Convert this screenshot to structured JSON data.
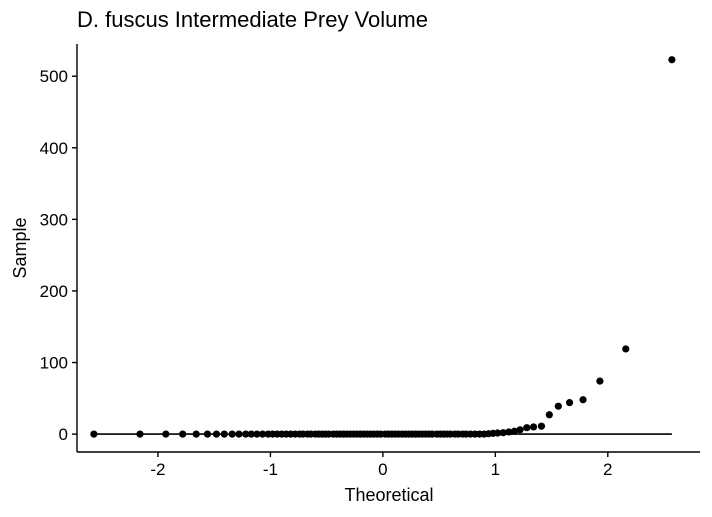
{
  "chart_data": {
    "type": "scatter",
    "subtype": "qq-plot",
    "title": "D. fuscus Intermediate Prey Volume",
    "xlabel": "Theoretical",
    "ylabel": "Sample",
    "xlim": [
      -2.72,
      2.82
    ],
    "ylim": [
      -25,
      545
    ],
    "x_ticks": [
      -2,
      -1,
      0,
      1,
      2
    ],
    "x_tick_labels": [
      "-2",
      "-1",
      "0",
      "1",
      "2"
    ],
    "y_ticks": [
      0,
      100,
      200,
      300,
      400,
      500
    ],
    "y_tick_labels": [
      "0",
      "100",
      "200",
      "300",
      "400",
      "500"
    ],
    "grid": false,
    "legend": "none",
    "reference_line": {
      "x": [
        -2.57,
        2.57
      ],
      "y": [
        0,
        0
      ]
    },
    "colors": {
      "points": "#000000",
      "axes": "#000000",
      "line": "#000000"
    },
    "points": {
      "x": [
        -2.57,
        -2.16,
        -1.93,
        -1.78,
        -1.66,
        -1.56,
        -1.48,
        -1.41,
        -1.34,
        -1.28,
        -1.22,
        -1.17,
        -1.12,
        -1.07,
        -1.02,
        -0.98,
        -0.94,
        -0.9,
        -0.86,
        -0.82,
        -0.78,
        -0.74,
        -0.71,
        -0.67,
        -0.64,
        -0.6,
        -0.57,
        -0.54,
        -0.51,
        -0.48,
        -0.44,
        -0.41,
        -0.38,
        -0.35,
        -0.32,
        -0.29,
        -0.26,
        -0.23,
        -0.2,
        -0.17,
        -0.14,
        -0.11,
        -0.08,
        -0.05,
        -0.02,
        0.02,
        0.05,
        0.08,
        0.11,
        0.14,
        0.17,
        0.2,
        0.23,
        0.26,
        0.29,
        0.32,
        0.35,
        0.38,
        0.41,
        0.44,
        0.48,
        0.51,
        0.54,
        0.57,
        0.6,
        0.64,
        0.67,
        0.71,
        0.74,
        0.78,
        0.82,
        0.86,
        0.9,
        0.94,
        0.98,
        1.02,
        1.07,
        1.12,
        1.17,
        1.22,
        1.28,
        1.34,
        1.41,
        1.48,
        1.56,
        1.66,
        1.78,
        1.93,
        2.16,
        2.57
      ],
      "y": [
        0,
        0,
        0,
        0,
        0,
        0,
        0,
        0,
        0,
        0,
        0,
        0,
        0,
        0,
        0,
        0,
        0,
        0,
        0,
        0,
        0,
        0,
        0,
        0,
        0,
        0,
        0,
        0,
        0,
        0,
        0,
        0,
        0,
        0,
        0,
        0,
        0,
        0,
        0,
        0,
        0,
        0,
        0,
        0,
        0,
        0,
        0,
        0,
        0,
        0,
        0,
        0,
        0,
        0,
        0,
        0,
        0,
        0,
        0,
        0,
        0,
        0,
        0,
        0,
        0,
        0,
        0,
        0,
        0,
        0,
        0,
        0,
        0,
        0.5,
        1,
        1.5,
        2,
        3,
        4,
        6,
        9,
        10,
        11,
        27,
        39,
        44,
        48,
        74,
        119,
        523
      ]
    }
  }
}
